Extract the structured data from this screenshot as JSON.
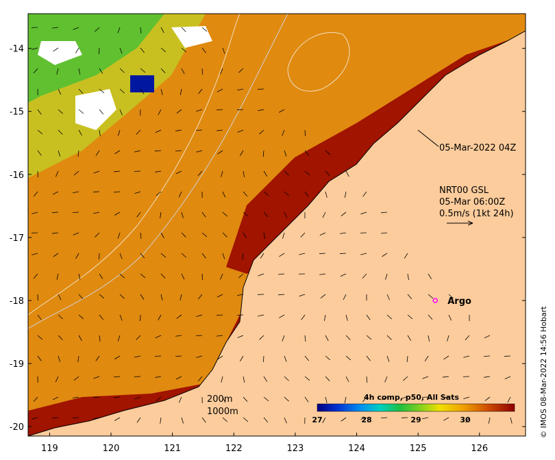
{
  "map": {
    "x_ticks": [
      "119",
      "120",
      "121",
      "122",
      "123",
      "124",
      "125",
      "126"
    ],
    "y_ticks": [
      "-14",
      "-15",
      "-16",
      "-17",
      "-18",
      "-19",
      "-20"
    ],
    "x_range": [
      118.65,
      126.75
    ],
    "y_range": [
      -20.15,
      -13.45
    ],
    "colors": {
      "land": "#fccc9c",
      "hot": "#a01400",
      "orange": "#dc7800",
      "yellow": "#e8c800",
      "green": "#30c030",
      "blue": "#0018a0"
    }
  },
  "annotations": {
    "pass_time": "05-Mar-2022 04Z",
    "current_product": "NRT00 GSL",
    "current_time": "05-Mar 06:00Z",
    "current_scale": "0.5m/s (1kt 24h)",
    "argo_label": "Argo",
    "argo_position": {
      "lon": 125.28,
      "lat": -18.0
    },
    "contour_200": "200m",
    "contour_1000": "1000m"
  },
  "colorbar": {
    "title": "4h comp, p50, All Sats",
    "ticks": [
      "27",
      "28",
      "29",
      "30"
    ],
    "range": [
      27,
      31
    ]
  },
  "credit": "© IMOS 08-Mar-2022 14:56 Hobart"
}
